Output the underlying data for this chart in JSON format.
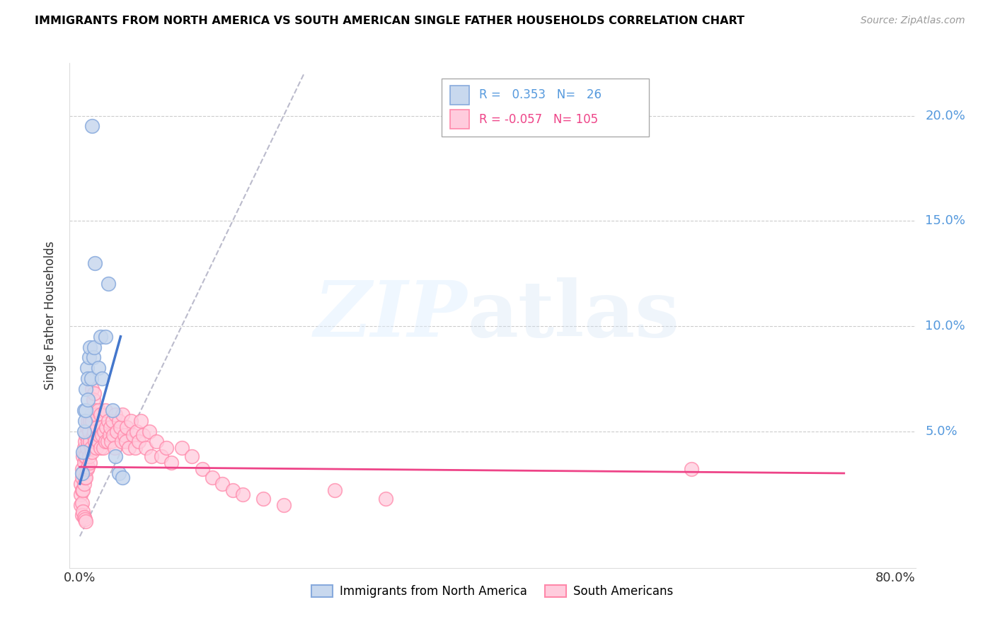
{
  "title": "IMMIGRANTS FROM NORTH AMERICA VS SOUTH AMERICAN SINGLE FATHER HOUSEHOLDS CORRELATION CHART",
  "source": "Source: ZipAtlas.com",
  "ylabel": "Single Father Households",
  "legend_label1": "Immigrants from North America",
  "legend_label2": "South Americans",
  "r1": 0.353,
  "n1": 26,
  "r2": -0.057,
  "n2": 105,
  "color_blue": "#88AADD",
  "color_pink": "#FF88AA",
  "color_blue_fill": "#C8D8EE",
  "color_pink_fill": "#FFCCDD",
  "blue_line_color": "#4477CC",
  "pink_line_color": "#EE4488",
  "diag_line_color": "#BBBBCC",
  "blue_points_x": [
    0.002,
    0.003,
    0.004,
    0.004,
    0.005,
    0.006,
    0.006,
    0.007,
    0.008,
    0.008,
    0.009,
    0.01,
    0.011,
    0.012,
    0.013,
    0.014,
    0.015,
    0.018,
    0.02,
    0.022,
    0.025,
    0.028,
    0.032,
    0.035,
    0.038,
    0.042
  ],
  "blue_points_y": [
    0.03,
    0.04,
    0.05,
    0.06,
    0.055,
    0.07,
    0.06,
    0.08,
    0.075,
    0.065,
    0.085,
    0.09,
    0.075,
    0.195,
    0.085,
    0.09,
    0.13,
    0.08,
    0.095,
    0.075,
    0.095,
    0.12,
    0.06,
    0.038,
    0.03,
    0.028
  ],
  "pink_points_x": [
    0.001,
    0.001,
    0.001,
    0.002,
    0.002,
    0.002,
    0.002,
    0.003,
    0.003,
    0.003,
    0.004,
    0.004,
    0.004,
    0.005,
    0.005,
    0.005,
    0.006,
    0.006,
    0.006,
    0.007,
    0.007,
    0.007,
    0.008,
    0.008,
    0.008,
    0.009,
    0.009,
    0.01,
    0.01,
    0.01,
    0.011,
    0.011,
    0.012,
    0.012,
    0.012,
    0.013,
    0.013,
    0.014,
    0.014,
    0.015,
    0.015,
    0.016,
    0.016,
    0.017,
    0.018,
    0.018,
    0.019,
    0.02,
    0.02,
    0.021,
    0.022,
    0.023,
    0.024,
    0.025,
    0.025,
    0.026,
    0.027,
    0.028,
    0.029,
    0.03,
    0.031,
    0.032,
    0.033,
    0.034,
    0.035,
    0.036,
    0.038,
    0.04,
    0.041,
    0.042,
    0.044,
    0.045,
    0.046,
    0.048,
    0.05,
    0.052,
    0.054,
    0.056,
    0.058,
    0.06,
    0.062,
    0.065,
    0.068,
    0.07,
    0.075,
    0.08,
    0.085,
    0.09,
    0.1,
    0.11,
    0.12,
    0.13,
    0.14,
    0.15,
    0.16,
    0.18,
    0.2,
    0.25,
    0.3,
    0.6,
    0.002,
    0.003,
    0.004,
    0.005,
    0.006
  ],
  "pink_points_y": [
    0.025,
    0.02,
    0.015,
    0.032,
    0.028,
    0.022,
    0.016,
    0.038,
    0.03,
    0.022,
    0.042,
    0.035,
    0.025,
    0.045,
    0.038,
    0.028,
    0.048,
    0.038,
    0.028,
    0.052,
    0.042,
    0.032,
    0.055,
    0.045,
    0.033,
    0.05,
    0.038,
    0.055,
    0.045,
    0.035,
    0.058,
    0.042,
    0.07,
    0.055,
    0.04,
    0.065,
    0.048,
    0.068,
    0.05,
    0.06,
    0.045,
    0.058,
    0.042,
    0.052,
    0.06,
    0.045,
    0.048,
    0.058,
    0.042,
    0.052,
    0.048,
    0.042,
    0.05,
    0.06,
    0.045,
    0.052,
    0.045,
    0.055,
    0.048,
    0.052,
    0.045,
    0.055,
    0.048,
    0.042,
    0.058,
    0.05,
    0.055,
    0.052,
    0.045,
    0.058,
    0.048,
    0.045,
    0.052,
    0.042,
    0.055,
    0.048,
    0.042,
    0.05,
    0.045,
    0.055,
    0.048,
    0.042,
    0.05,
    0.038,
    0.045,
    0.038,
    0.042,
    0.035,
    0.042,
    0.038,
    0.032,
    0.028,
    0.025,
    0.022,
    0.02,
    0.018,
    0.015,
    0.022,
    0.018,
    0.032,
    0.01,
    0.012,
    0.009,
    0.008,
    0.007
  ],
  "xlim_data": [
    0.0,
    0.8
  ],
  "ylim_data": [
    0.0,
    0.22
  ],
  "ytick_positions": [
    0.0,
    0.05,
    0.1,
    0.15,
    0.2
  ],
  "ytick_labels_right": [
    "",
    "5.0%",
    "10.0%",
    "15.0%",
    "20.0%"
  ],
  "xtick_positions": [
    0.0,
    0.2,
    0.4,
    0.6,
    0.8
  ],
  "xtick_labels": [
    "0.0%",
    "",
    "",
    "",
    "80.0%"
  ]
}
